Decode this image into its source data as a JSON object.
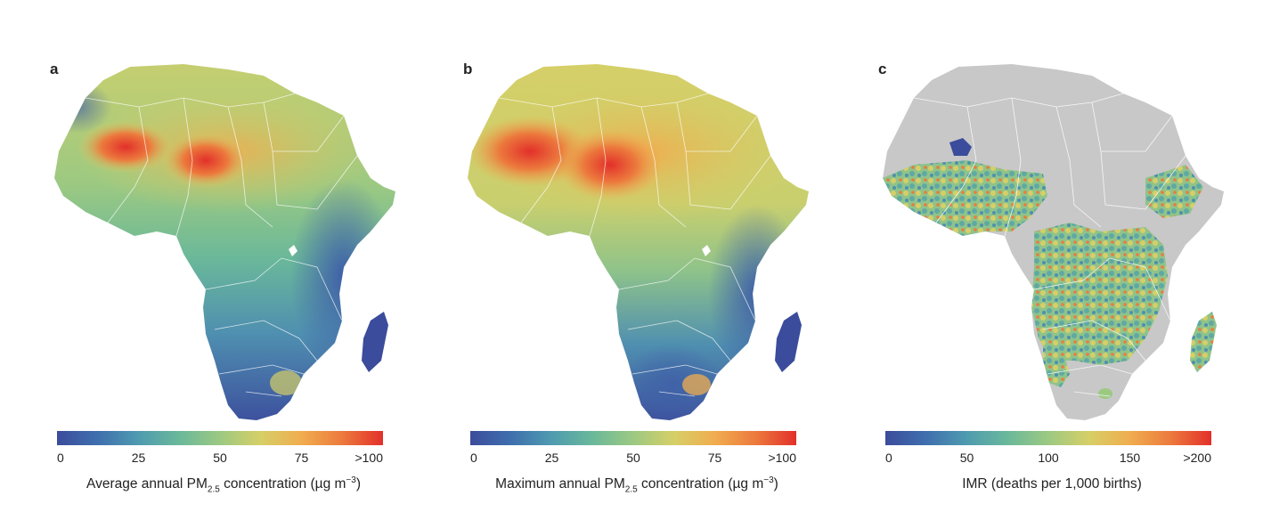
{
  "panels": [
    {
      "letter": "a",
      "colormap": [
        "#3b4c9c",
        "#3f6fae",
        "#4f9bb0",
        "#6ab89a",
        "#9cc982",
        "#d6cf67",
        "#f0ad4f",
        "#ec7a3d",
        "#e2302a"
      ],
      "ticks": [
        "0",
        "25",
        "50",
        "75",
        ">100"
      ],
      "caption_pre": "Average annual PM",
      "caption_sub": "2.5",
      "caption_mid": " concentration (µg m",
      "caption_sup": "−3",
      "caption_post": ")"
    },
    {
      "letter": "b",
      "colormap": [
        "#3b4c9c",
        "#3f6fae",
        "#4f9bb0",
        "#6ab89a",
        "#9cc982",
        "#d6cf67",
        "#f0ad4f",
        "#ec7a3d",
        "#e2302a"
      ],
      "ticks": [
        "0",
        "25",
        "50",
        "75",
        ">100"
      ],
      "caption_pre": "Maximum annual PM",
      "caption_sub": "2.5",
      "caption_mid": " concentration (µg m",
      "caption_sup": "−3",
      "caption_post": ")"
    },
    {
      "letter": "c",
      "colormap": [
        "#3b4c9c",
        "#3f6fae",
        "#4f9bb0",
        "#6ab89a",
        "#9cc982",
        "#d6cf67",
        "#f0ad4f",
        "#ec7a3d",
        "#e2302a"
      ],
      "ticks": [
        "0",
        "50",
        "100",
        "150",
        ">200"
      ],
      "caption_pre": "IMR (deaths per 1,000 births)",
      "caption_sub": "",
      "caption_mid": "",
      "caption_sup": "",
      "caption_post": ""
    }
  ],
  "colors": {
    "land_grey": "#c8c8c8",
    "border": "#ffffff",
    "low": "#3b4c9c",
    "mid_teal": "#5fa9a4",
    "mid_green": "#9cc982",
    "mid_yellow": "#d6cf67",
    "high_orange": "#ec7a3d",
    "high_red": "#e2302a"
  }
}
